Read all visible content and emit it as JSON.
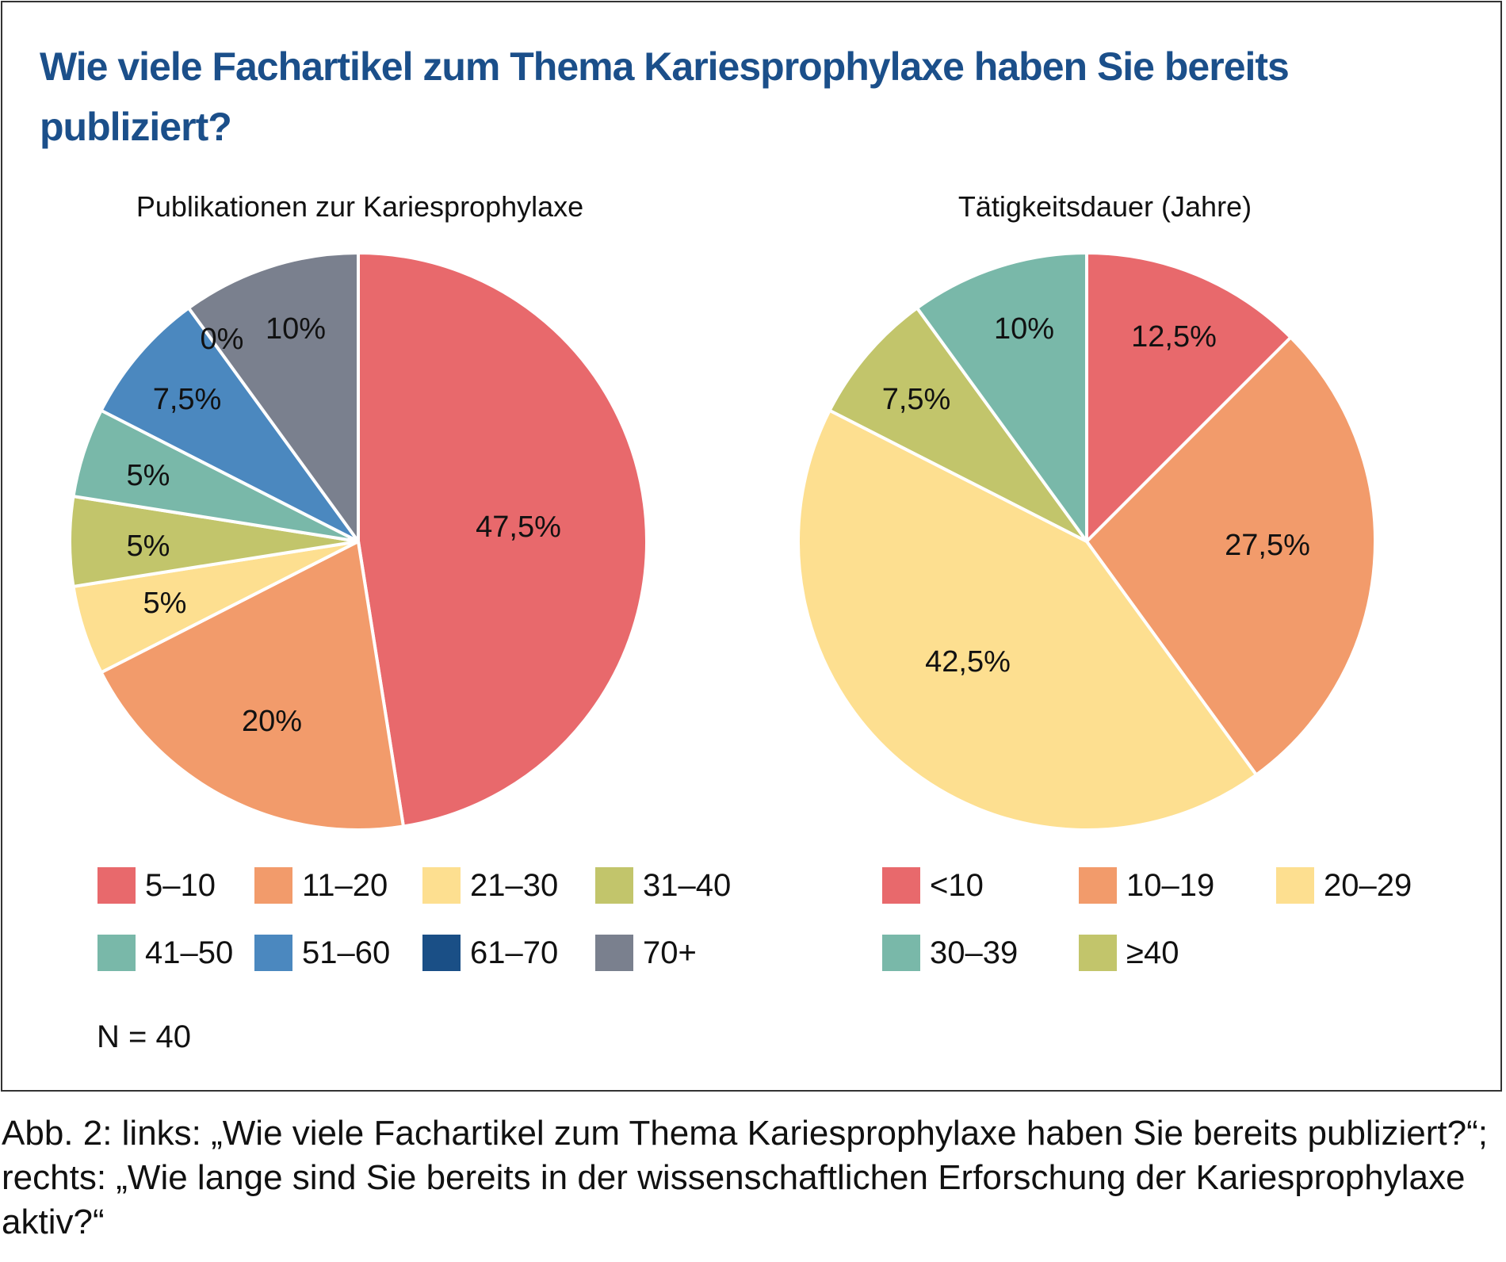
{
  "title": "Wie viele Fachartikel zum Thema Kariesprophylaxe haben Sie bereits publiziert?",
  "caption": "Abb. 2: links: „Wie viele Fachartikel zum Thema Kariesprophylaxe haben Sie bereits publiziert?“; rechts: „Wie lange sind Sie bereits in der wissenschaftlichen Erforschung der Kariesprophylaxe aktiv?“",
  "n_label": "N = 40",
  "colors": {
    "title": "#1b4f8a"
  },
  "chart_data": [
    {
      "type": "pie",
      "title": "Publikationen zur Kariesprophylaxe",
      "legend_position": "bottom",
      "slices": [
        {
          "label": "5–10",
          "value": 47.5,
          "value_label": "47,5%",
          "color": "#e8696c"
        },
        {
          "label": "11–20",
          "value": 20,
          "value_label": "20%",
          "color": "#f29b6b"
        },
        {
          "label": "21–30",
          "value": 5,
          "value_label": "5%",
          "color": "#fddf90"
        },
        {
          "label": "31–40",
          "value": 5,
          "value_label": "5%",
          "color": "#c2c56b"
        },
        {
          "label": "41–50",
          "value": 5,
          "value_label": "5%",
          "color": "#79b8a9"
        },
        {
          "label": "51–60",
          "value": 7.5,
          "value_label": "7,5%",
          "color": "#4b88bf"
        },
        {
          "label": "61–70",
          "value": 0,
          "value_label": "0%",
          "color": "#1a4f86"
        },
        {
          "label": "70+",
          "value": 10,
          "value_label": "10%",
          "color": "#7a808e"
        }
      ]
    },
    {
      "type": "pie",
      "title": "Tätigkeitsdauer (Jahre)",
      "legend_position": "bottom",
      "slices": [
        {
          "label": "<10",
          "value": 12.5,
          "value_label": "12,5%",
          "color": "#e8696c"
        },
        {
          "label": "10–19",
          "value": 27.5,
          "value_label": "27,5%",
          "color": "#f29b6b"
        },
        {
          "label": "20–29",
          "value": 42.5,
          "value_label": "42,5%",
          "color": "#fddf90"
        },
        {
          "label": "≥40",
          "value": 7.5,
          "value_label": "7,5%",
          "color": "#c2c56b"
        },
        {
          "label": "30–39",
          "value": 10,
          "value_label": "10%",
          "color": "#79b8a9"
        }
      ],
      "legend_order": [
        "<10",
        "10–19",
        "20–29",
        "30–39",
        "≥40"
      ]
    }
  ]
}
